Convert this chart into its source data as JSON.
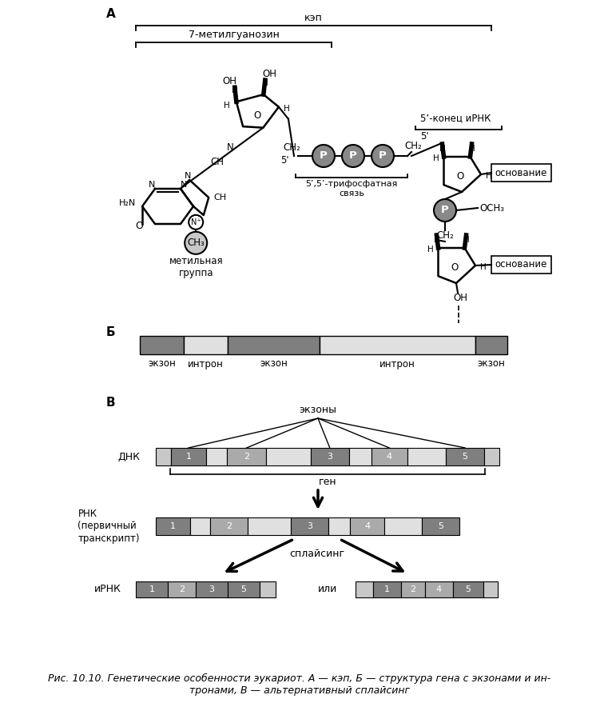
{
  "title_A": "А",
  "title_B": "Б",
  "title_C": "В",
  "cap_label": "кэп",
  "methylguanosine_label": "7-метилгуанозин",
  "five_prime_end_label": "5’-конец иРНК",
  "methyl_label": "метильная\nгруппа",
  "ch3_label": "CH₃",
  "phosphate_link_label": "5’,5’-трифосфатная\nсвязь",
  "osnov_label": "основание",
  "exzon_labels_B": [
    "экзон",
    "интрон",
    "экзон",
    "интрон",
    "экзон"
  ],
  "exzony_label": "экзоны",
  "dnk_label": "ДНК",
  "gen_label": "ген",
  "rnk_label": "РНК\n(первичный\nтранскрипт)",
  "splicing_label": "сплайсинг",
  "irnk_label": "иРНК",
  "ili_label": "или",
  "caption": "Рис. 10.10. Генетические особенности эукариот. А — кэп, Б — структура гена с экзонами и ин-\nтронами, В — альтернативный сплайсинг",
  "color_exon_dark": "#7f7f7f",
  "color_exon_mid": "#aaaaaa",
  "color_intron": "#e0e0e0",
  "color_flank": "#c8c8c8",
  "color_gray_p": "#888888",
  "bg_color": "#ffffff"
}
